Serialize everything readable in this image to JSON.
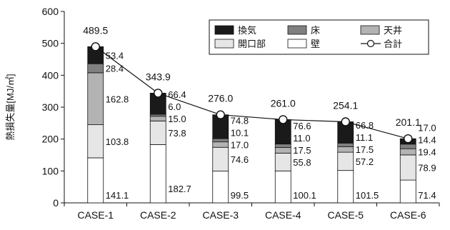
{
  "chart_data": {
    "type": "bar",
    "stacked": true,
    "categories": [
      "CASE-1",
      "CASE-2",
      "CASE-3",
      "CASE-4",
      "CASE-5",
      "CASE-6"
    ],
    "series": [
      {
        "name": "壁",
        "color": "#ffffff",
        "values": [
          141.1,
          182.7,
          99.5,
          100.1,
          101.5,
          71.4
        ]
      },
      {
        "name": "開口部",
        "color": "#e6e6e6",
        "values": [
          103.8,
          73.8,
          74.6,
          55.8,
          57.2,
          78.9
        ]
      },
      {
        "name": "天井",
        "color": "#b3b3b3",
        "values": [
          162.8,
          15.0,
          17.0,
          17.5,
          17.5,
          19.4
        ]
      },
      {
        "name": "床",
        "color": "#808080",
        "values": [
          28.4,
          6.0,
          10.1,
          11.0,
          11.1,
          14.4
        ]
      },
      {
        "name": "換気",
        "color": "#1a1a1a",
        "values": [
          53.4,
          66.4,
          74.8,
          76.6,
          66.8,
          17.0
        ]
      }
    ],
    "line": {
      "name": "合計",
      "values": [
        489.5,
        343.9,
        276.0,
        261.0,
        254.1,
        201.1
      ]
    },
    "ylabel": "熱損失量[MJ/㎡]",
    "xlabel": "",
    "ylim": [
      0,
      600
    ],
    "yticks": [
      "0",
      "100",
      "200",
      "300",
      "400",
      "500",
      "600"
    ],
    "labels": [
      [
        "141.1",
        "103.8",
        "162.8",
        "28.4",
        "53.4"
      ],
      [
        "182.7",
        "73.8",
        "15.0",
        "6.0",
        "66.4"
      ],
      [
        "99.5",
        "74.6",
        "17.0",
        "10.1",
        "74.8"
      ],
      [
        "100.1",
        "55.8",
        "17.5",
        "11.0",
        "76.6"
      ],
      [
        "101.5",
        "57.2",
        "17.5",
        "11.1",
        "66.8"
      ],
      [
        "71.4",
        "78.9",
        "19.4",
        "14.4",
        "17.0"
      ]
    ],
    "total_labels": [
      "489.5",
      "343.9",
      "276.0",
      "261.0",
      "254.1",
      "201.1"
    ],
    "legend": {
      "placement": "top-right",
      "items": [
        "換気",
        "床",
        "天井",
        "開口部",
        "壁",
        "合計"
      ]
    },
    "grid": false
  }
}
